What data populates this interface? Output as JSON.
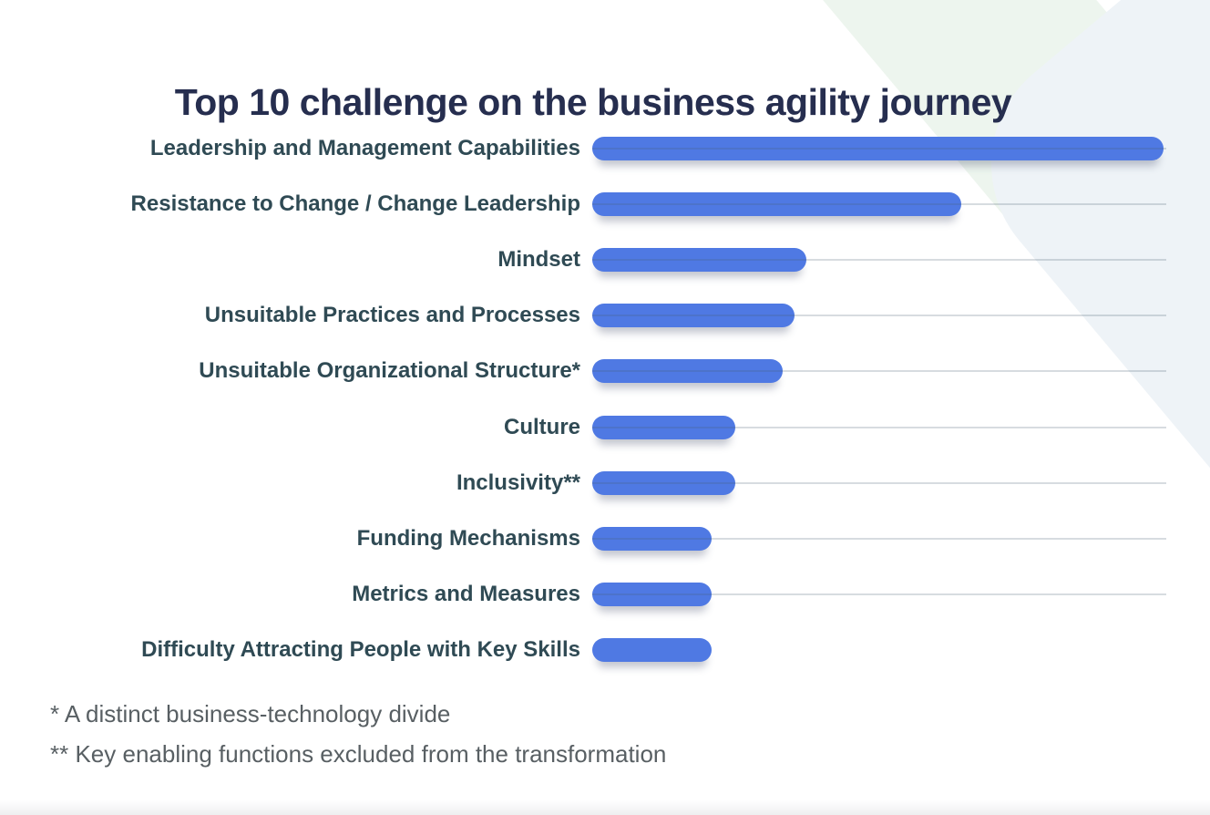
{
  "page": {
    "title": "Top 10 challenge on the business agility journey",
    "footnotes": [
      "* A distinct business-technology divide",
      "** Key enabling functions excluded from the transformation"
    ]
  },
  "colors": {
    "title": "#262e4f",
    "label": "#2f4a54",
    "bar": "#4f79e3",
    "track_line": "#d8dce0",
    "footnote": "#585f63",
    "deco_green": "#edf5ee",
    "deco_blue": "#eef3f7",
    "background": "#ffffff"
  },
  "chart_data": {
    "type": "bar",
    "orientation": "horizontal",
    "title": "Top 10 challenge on the business agility journey",
    "categories": [
      "Leadership and Management Capabilities",
      "Resistance to Change / Change Leadership",
      "Mindset",
      "Unsuitable Practices and Processes",
      "Unsuitable Organizational Structure*",
      "Culture",
      "Inclusivity**",
      "Funding Mechanisms",
      "Metrics and Measures",
      "Difficulty Attracting People with Key Skills"
    ],
    "values": [
      48,
      31,
      18,
      17,
      16,
      12,
      12,
      10,
      10,
      10
    ],
    "values_estimated_from_bar_lengths": true,
    "value_labels_shown": false,
    "axis_ticks_shown": false,
    "xlim": [
      0,
      48.2
    ],
    "legend": "none",
    "row_track_line": [
      true,
      true,
      true,
      true,
      true,
      true,
      true,
      true,
      true,
      false
    ],
    "annotations": [
      "* A distinct business-technology divide",
      "** Key enabling functions excluded from the transformation"
    ]
  }
}
